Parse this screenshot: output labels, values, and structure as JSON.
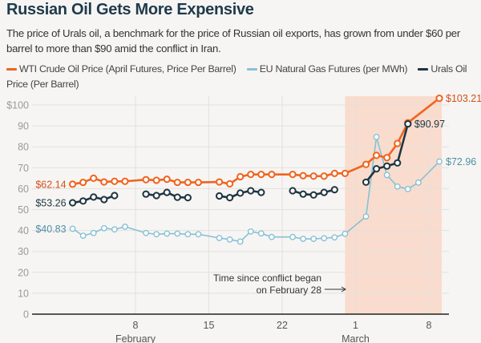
{
  "header": {
    "title": "Russian Oil Gets More Expensive",
    "subtitle": "The price of Urals oil, a benchmark for the price of Russian oil exports, has grown from under $60 per barrel to more than $90 amid the conflict in Iran."
  },
  "colors": {
    "wti": "#f0641e",
    "gas": "#86c1d6",
    "urals": "#1f3540",
    "shade": "#f9dccd",
    "background": "#f6f5f3"
  },
  "chart_data": {
    "type": "line",
    "ylim": [
      0,
      100
    ],
    "yticks": [
      "0",
      "10",
      "20",
      "30",
      "40",
      "50",
      "60",
      "70",
      "80",
      "90",
      "$100"
    ],
    "xticks": [
      {
        "date": "Feb 8",
        "label": "8"
      },
      {
        "date": "Feb 15",
        "label": "15"
      },
      {
        "date": "Feb 22",
        "label": "22"
      },
      {
        "date": "Mar 1",
        "label": "1"
      },
      {
        "date": "Mar 8",
        "label": "8"
      }
    ],
    "month_labels": [
      {
        "date": "Feb 8",
        "label": "February"
      },
      {
        "date": "Mar 1",
        "label": "March"
      }
    ],
    "grid": true,
    "legend_placement": "top",
    "shaded_region": {
      "from": "Feb 28",
      "to": "Mar 9"
    },
    "annotation": {
      "lines": [
        "Time since conflict began",
        "on February 28"
      ]
    },
    "series": [
      {
        "key": "wti",
        "name": "WTI Crude Oil Price (April Futures, Price Per Barrel)",
        "start_label": "$62.14",
        "end_label": "$103.21",
        "segments": [
          [
            [
              "Feb 2",
              62.14
            ],
            [
              "Feb 3",
              63
            ],
            [
              "Feb 4",
              65
            ],
            [
              "Feb 5",
              63.2
            ],
            [
              "Feb 6",
              63.5
            ],
            [
              "Feb 7",
              63.5
            ],
            [
              "Feb 9",
              64.3
            ],
            [
              "Feb 10",
              64
            ],
            [
              "Feb 11",
              64.5
            ],
            [
              "Feb 12",
              63
            ],
            [
              "Feb 13",
              63
            ],
            [
              "Feb 14",
              63
            ],
            [
              "Feb 16",
              63.2
            ],
            [
              "Feb 17",
              62.3
            ],
            [
              "Feb 18",
              65.7
            ],
            [
              "Feb 19",
              66.8
            ],
            [
              "Feb 20",
              66.8
            ],
            [
              "Feb 21",
              66.8
            ],
            [
              "Feb 23",
              66.8
            ],
            [
              "Feb 24",
              66.2
            ],
            [
              "Feb 25",
              66
            ],
            [
              "Feb 26",
              66
            ],
            [
              "Feb 27",
              67.3
            ],
            [
              "Feb 28",
              67.3
            ],
            [
              "Mar 2",
              71.6
            ],
            [
              "Mar 3",
              75.9
            ],
            [
              "Mar 4",
              74.8
            ],
            [
              "Mar 5",
              81.6
            ],
            [
              "Mar 6",
              91.5
            ],
            [
              "Mar 9",
              103.21
            ]
          ]
        ]
      },
      {
        "key": "gas",
        "name": "EU Natural Gas Futures (per MWh)",
        "start_label": "$40.83",
        "end_label": "$72.96",
        "segments": [
          [
            [
              "Feb 2",
              40.83
            ],
            [
              "Feb 3",
              37.5
            ],
            [
              "Feb 4",
              38.8
            ],
            [
              "Feb 5",
              41.1
            ],
            [
              "Feb 6",
              40.5
            ],
            [
              "Feb 7",
              41.8
            ],
            [
              "Feb 9",
              38.8
            ],
            [
              "Feb 10",
              38.2
            ],
            [
              "Feb 11",
              38.5
            ],
            [
              "Feb 12",
              38.5
            ],
            [
              "Feb 13",
              38.2
            ],
            [
              "Feb 14",
              38.2
            ],
            [
              "Feb 16",
              36.4
            ],
            [
              "Feb 17",
              35.7
            ],
            [
              "Feb 18",
              34.7
            ],
            [
              "Feb 19",
              39.5
            ],
            [
              "Feb 20",
              38.6
            ],
            [
              "Feb 21",
              36.9
            ],
            [
              "Feb 23",
              36.9
            ],
            [
              "Feb 24",
              36
            ],
            [
              "Feb 25",
              36
            ],
            [
              "Feb 26",
              36.3
            ],
            [
              "Feb 27",
              36.7
            ],
            [
              "Feb 28",
              38.4
            ],
            [
              "Mar 2",
              46.7
            ],
            [
              "Mar 3",
              84.7
            ],
            [
              "Mar 4",
              66.5
            ],
            [
              "Mar 5",
              61
            ],
            [
              "Mar 6",
              59.8
            ],
            [
              "Mar 7",
              62.9
            ],
            [
              "Mar 9",
              72.96
            ]
          ]
        ]
      },
      {
        "key": "urals",
        "name": "Urals Oil Price (Per Barrel)",
        "start_label": "$53.26",
        "end_label": "$90.97",
        "segments": [
          [
            [
              "Feb 2",
              53.26
            ],
            [
              "Feb 3",
              54.1
            ],
            [
              "Feb 4",
              56
            ],
            [
              "Feb 5",
              54.8
            ],
            [
              "Feb 6",
              56.7
            ]
          ],
          [
            [
              "Feb 9",
              57.4
            ],
            [
              "Feb 10",
              56.7
            ],
            [
              "Feb 11",
              58.2
            ],
            [
              "Feb 12",
              55.9
            ],
            [
              "Feb 13",
              55.7
            ]
          ],
          [
            [
              "Feb 16",
              56.5
            ],
            [
              "Feb 17",
              55.7
            ],
            [
              "Feb 18",
              57.9
            ],
            [
              "Feb 19",
              59
            ],
            [
              "Feb 20",
              58.2
            ]
          ],
          [
            [
              "Feb 23",
              59
            ],
            [
              "Feb 24",
              57.4
            ],
            [
              "Feb 25",
              57
            ],
            [
              "Feb 26",
              58.2
            ],
            [
              "Feb 27",
              59.5
            ]
          ],
          [
            [
              "Mar 2",
              63.1
            ],
            [
              "Mar 3",
              69.5
            ],
            [
              "Mar 4",
              70.8
            ],
            [
              "Mar 5",
              72.3
            ],
            [
              "Mar 6",
              90.97
            ]
          ]
        ]
      }
    ]
  }
}
